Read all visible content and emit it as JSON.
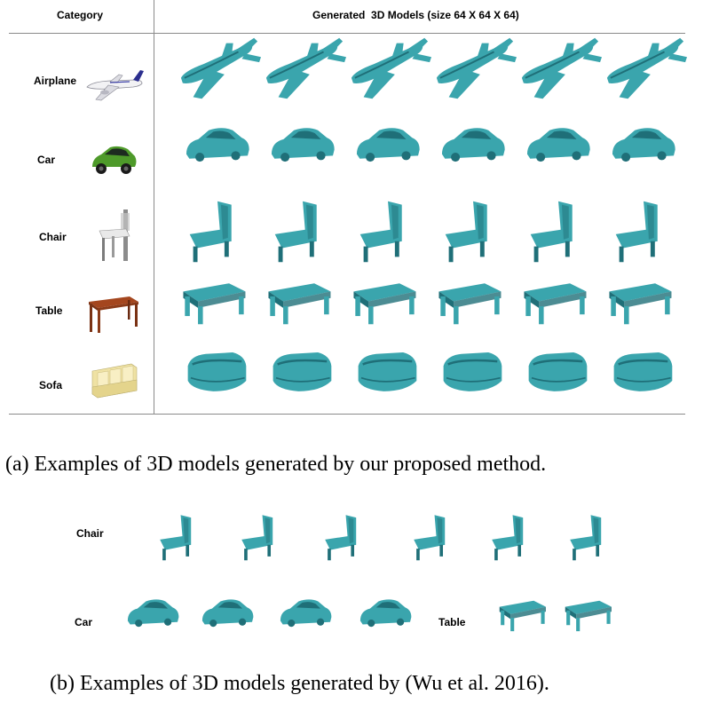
{
  "panel_a": {
    "header_category": "Category",
    "header_models": "Generated  3D Models (size 64 X 64 X 64)",
    "rows": [
      {
        "label": "Airplane",
        "shape": "airplane",
        "ref_icon": "airplane-render-icon"
      },
      {
        "label": "Car",
        "shape": "car",
        "ref_icon": "car-render-icon"
      },
      {
        "label": "Chair",
        "shape": "chair",
        "ref_icon": "chair-render-icon"
      },
      {
        "label": "Table",
        "shape": "table",
        "ref_icon": "table-render-icon"
      },
      {
        "label": "Sofa",
        "shape": "sofa",
        "ref_icon": "sofa-render-icon"
      }
    ],
    "samples_per_row": 6,
    "caption": "(a) Examples of 3D models generated by our proposed method."
  },
  "panel_b": {
    "chair_label": "Chair",
    "car_label": "Car",
    "table_label": "Table",
    "chair_samples": 6,
    "car_samples": 4,
    "table_samples": 2,
    "caption": "(b) Examples of 3D models generated by (Wu et al. 2016)."
  },
  "colors": {
    "voxel": "#3aa5ad",
    "voxel_dark": "#1f6f78",
    "rule": "#8a8a8a"
  }
}
